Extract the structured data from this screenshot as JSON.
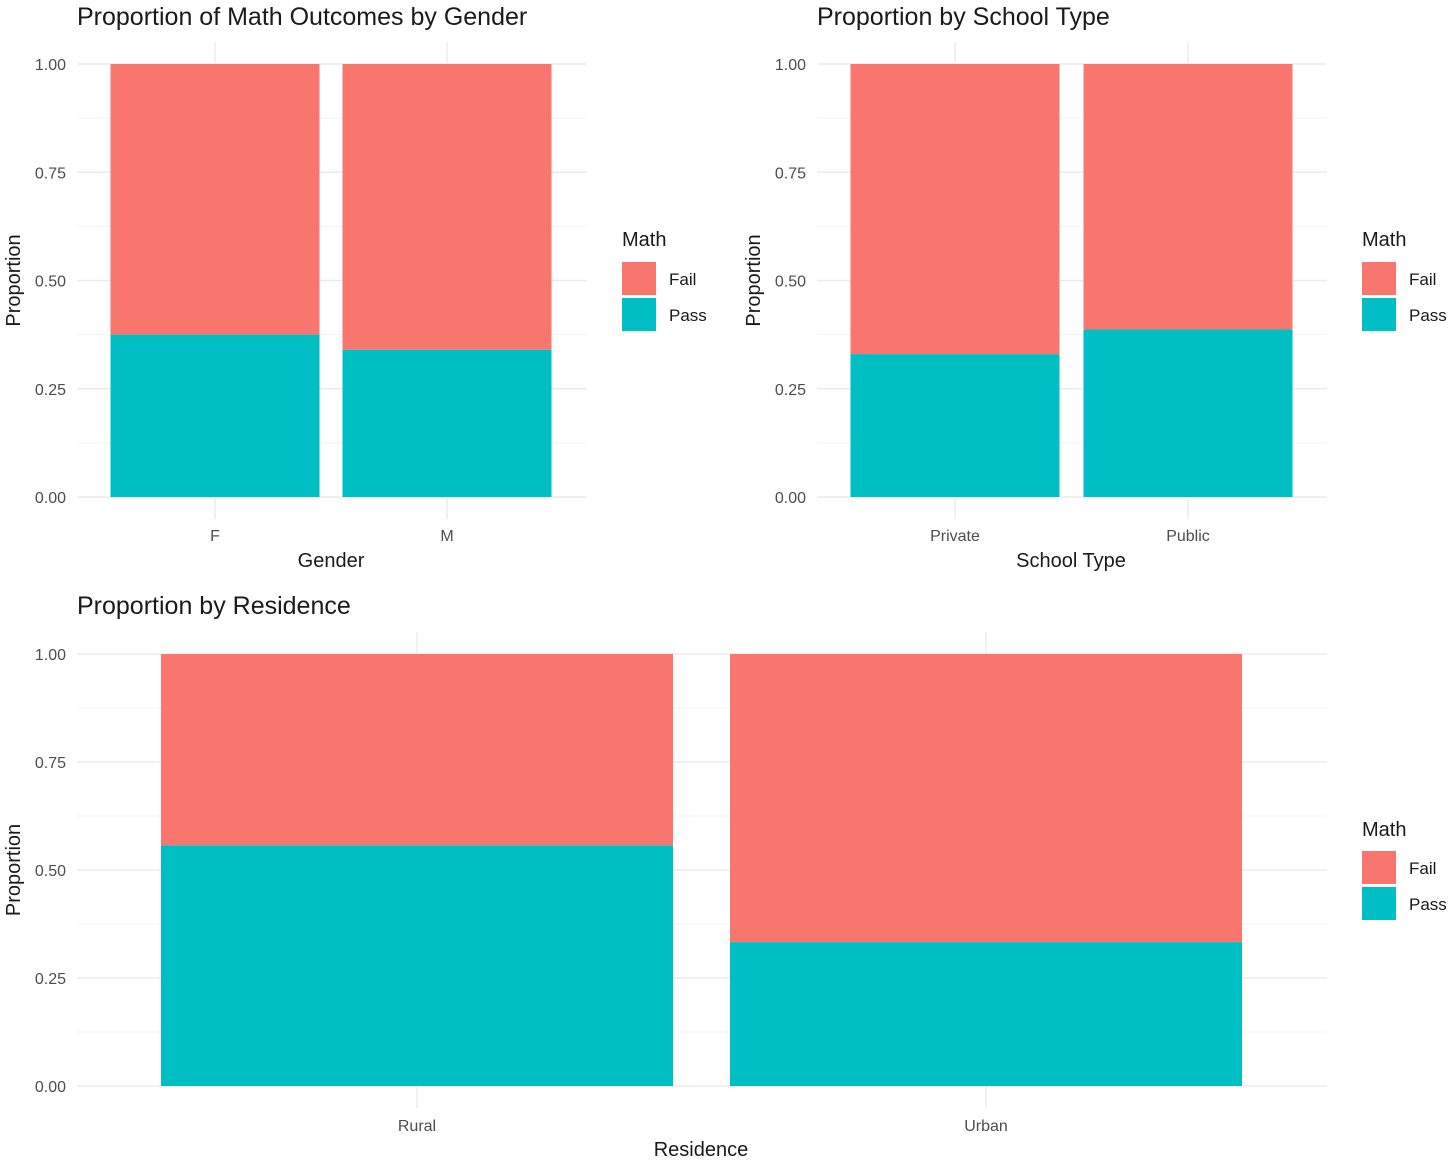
{
  "chart_data": [
    {
      "type": "bar",
      "stacked": true,
      "title": "Proportion of Math Outcomes by Gender",
      "xlabel": "Gender",
      "ylabel": "Proportion",
      "ylim": [
        0,
        1
      ],
      "yticks": [
        "0.00",
        "0.25",
        "0.50",
        "0.75",
        "1.00"
      ],
      "categories": [
        "F",
        "M"
      ],
      "series": [
        {
          "name": "Fail",
          "values": [
            0.625,
            0.66
          ],
          "color": "#F8766D"
        },
        {
          "name": "Pass",
          "values": [
            0.375,
            0.34
          ],
          "color": "#00BFC4"
        }
      ],
      "legend": {
        "title": "Math",
        "placement": "right"
      },
      "grid": true
    },
    {
      "type": "bar",
      "stacked": true,
      "title": "Proportion by School Type",
      "xlabel": "School Type",
      "ylabel": "Proportion",
      "ylim": [
        0,
        1
      ],
      "yticks": [
        "0.00",
        "0.25",
        "0.50",
        "0.75",
        "1.00"
      ],
      "categories": [
        "Private",
        "Public"
      ],
      "series": [
        {
          "name": "Fail",
          "values": [
            0.67,
            0.613
          ],
          "color": "#F8766D"
        },
        {
          "name": "Pass",
          "values": [
            0.33,
            0.387
          ],
          "color": "#00BFC4"
        }
      ],
      "legend": {
        "title": "Math",
        "placement": "right"
      },
      "grid": true
    },
    {
      "type": "bar",
      "stacked": true,
      "title": "Proportion by Residence",
      "xlabel": "Residence",
      "ylabel": "Proportion",
      "ylim": [
        0,
        1
      ],
      "yticks": [
        "0.00",
        "0.25",
        "0.50",
        "0.75",
        "1.00"
      ],
      "categories": [
        "Rural",
        "Urban"
      ],
      "series": [
        {
          "name": "Fail",
          "values": [
            0.443,
            0.667
          ],
          "color": "#F8766D"
        },
        {
          "name": "Pass",
          "values": [
            0.557,
            0.333
          ],
          "color": "#00BFC4"
        }
      ],
      "legend": {
        "title": "Math",
        "placement": "right"
      },
      "grid": true
    }
  ]
}
